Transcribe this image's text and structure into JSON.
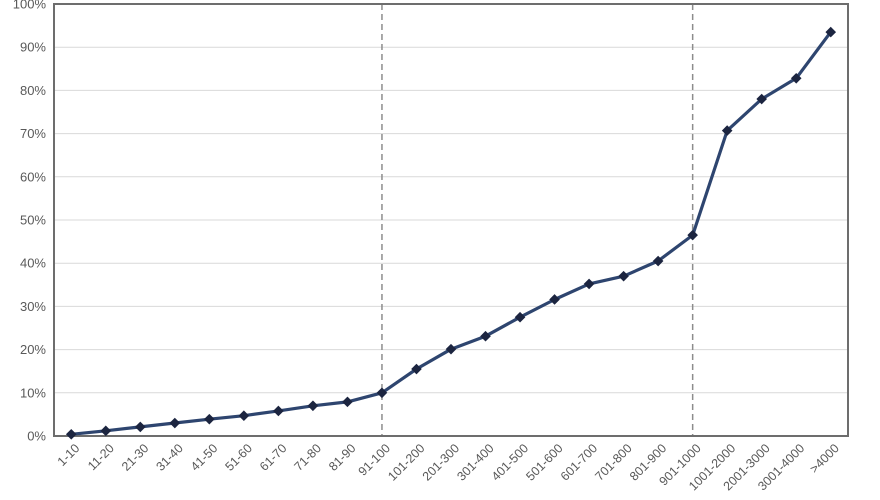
{
  "chart_data": {
    "type": "line",
    "categories": [
      "1-10",
      "11-20",
      "21-30",
      "31-40",
      "41-50",
      "51-60",
      "61-70",
      "71-80",
      "81-90",
      "91-100",
      "101-200",
      "201-300",
      "301-400",
      "401-500",
      "501-600",
      "601-700",
      "701-800",
      "801-900",
      "901-1000",
      "1001-2000",
      "2001-3000",
      "3001-4000",
      ">4000"
    ],
    "values": [
      0.4,
      1.2,
      2.1,
      3.0,
      3.9,
      4.7,
      5.8,
      7.0,
      7.9,
      10.0,
      15.5,
      20.1,
      23.1,
      27.5,
      31.6,
      35.2,
      37.0,
      40.5,
      46.5,
      70.7,
      78.0,
      82.8,
      93.5
    ],
    "title": "",
    "xlabel": "",
    "ylabel": "",
    "ylim": [
      0,
      100
    ],
    "y_ticks": [
      "0%",
      "10%",
      "20%",
      "30%",
      "40%",
      "50%",
      "60%",
      "70%",
      "80%",
      "90%",
      "100%"
    ],
    "y_tick_values": [
      0,
      10,
      20,
      30,
      40,
      50,
      60,
      70,
      80,
      90,
      100
    ],
    "grid": true,
    "legend": "none",
    "marker_shape": "diamond",
    "divider_categories": [
      "91-100",
      "901-1000"
    ]
  },
  "colors": {
    "line": "#2e456f",
    "marker": "#1c2540",
    "gridline": "#d9d9d9",
    "plot_border": "#6d6d6d",
    "dashed_divider": "#8c8c8c",
    "tick_label": "#595959",
    "background": "#ffffff"
  }
}
